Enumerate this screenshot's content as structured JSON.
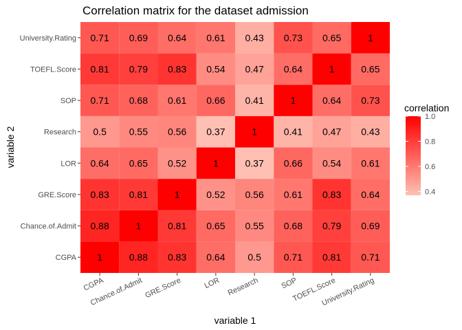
{
  "chart_data": {
    "type": "heatmap",
    "title": "Correlation matrix for the dataset admission",
    "xlabel": "variable 1",
    "ylabel": "variable 2",
    "x_categories": [
      "CGPA",
      "Chance.of.Admit",
      "GRE.Score",
      "LOR",
      "Research",
      "SOP",
      "TOEFL.Score",
      "University.Rating"
    ],
    "y_categories": [
      "CGPA",
      "Chance.of.Admit",
      "GRE.Score",
      "LOR",
      "Research",
      "SOP",
      "TOEFL.Score",
      "University.Rating"
    ],
    "values": [
      [
        1,
        0.88,
        0.83,
        0.64,
        0.5,
        0.71,
        0.81,
        0.71
      ],
      [
        0.88,
        1,
        0.81,
        0.65,
        0.55,
        0.68,
        0.79,
        0.69
      ],
      [
        0.83,
        0.81,
        1,
        0.52,
        0.56,
        0.61,
        0.83,
        0.64
      ],
      [
        0.64,
        0.65,
        0.52,
        1,
        0.37,
        0.66,
        0.54,
        0.61
      ],
      [
        0.5,
        0.55,
        0.56,
        0.37,
        1,
        0.41,
        0.47,
        0.43
      ],
      [
        0.71,
        0.68,
        0.61,
        0.66,
        0.41,
        1,
        0.64,
        0.73
      ],
      [
        0.81,
        0.79,
        0.83,
        0.54,
        0.47,
        0.64,
        1,
        0.65
      ],
      [
        0.71,
        0.69,
        0.64,
        0.61,
        0.43,
        0.73,
        0.65,
        1
      ]
    ],
    "legend": {
      "title": "correlation",
      "ticks": [
        "0.4",
        "0.6",
        "0.8",
        "1.0"
      ],
      "tick_values": [
        0.4,
        0.6,
        0.8,
        1.0
      ],
      "range": [
        0.37,
        1.0
      ],
      "placement": "right",
      "low_color": "#ffc0b3",
      "high_color": "#ff0000"
    },
    "grid": true,
    "panel_background": "#ebebeb",
    "grid_color": "#ffffff"
  }
}
